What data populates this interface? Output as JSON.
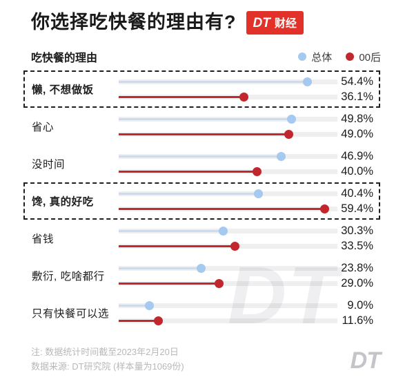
{
  "header": {
    "title": "你选择吃快餐的理由有?",
    "badge": {
      "dt": "DT",
      "caijing": "财经",
      "bg_color": "#e23128"
    }
  },
  "chart_header": {
    "subtitle": "吃快餐的理由",
    "legend": [
      {
        "label": "总体",
        "color": "#a6c9ef"
      },
      {
        "label": "00后",
        "color": "#c1272d"
      }
    ]
  },
  "chart_data": {
    "type": "bar",
    "title": "吃快餐的理由",
    "categories": [
      "懒, 不想做饭",
      "省心",
      "没时间",
      "馋, 真的好吃",
      "省钱",
      "敷衍, 吃啥都行",
      "只有快餐可以选"
    ],
    "series": [
      {
        "name": "总体",
        "color": "#a6c9ef",
        "line_color": "#c8dcf5",
        "values": [
          54.4,
          49.8,
          46.9,
          40.4,
          30.3,
          23.8,
          9.0
        ]
      },
      {
        "name": "00后",
        "color": "#c1272d",
        "line_color": "#c1272d",
        "values": [
          36.1,
          49.0,
          40.0,
          59.4,
          33.5,
          29.0,
          11.6
        ]
      }
    ],
    "highlighted_indices": [
      0,
      3
    ],
    "value_suffix": "%",
    "xlim": [
      0,
      63
    ],
    "track_color": "#efefef",
    "legend_position": "top-right",
    "grid": false
  },
  "watermark": "DT",
  "footer": {
    "note1": "注: 数据统计时间截至2023年2月20日",
    "note2": "数据来源: DT研究院 (样本量为1069份)",
    "logo": "DT"
  }
}
